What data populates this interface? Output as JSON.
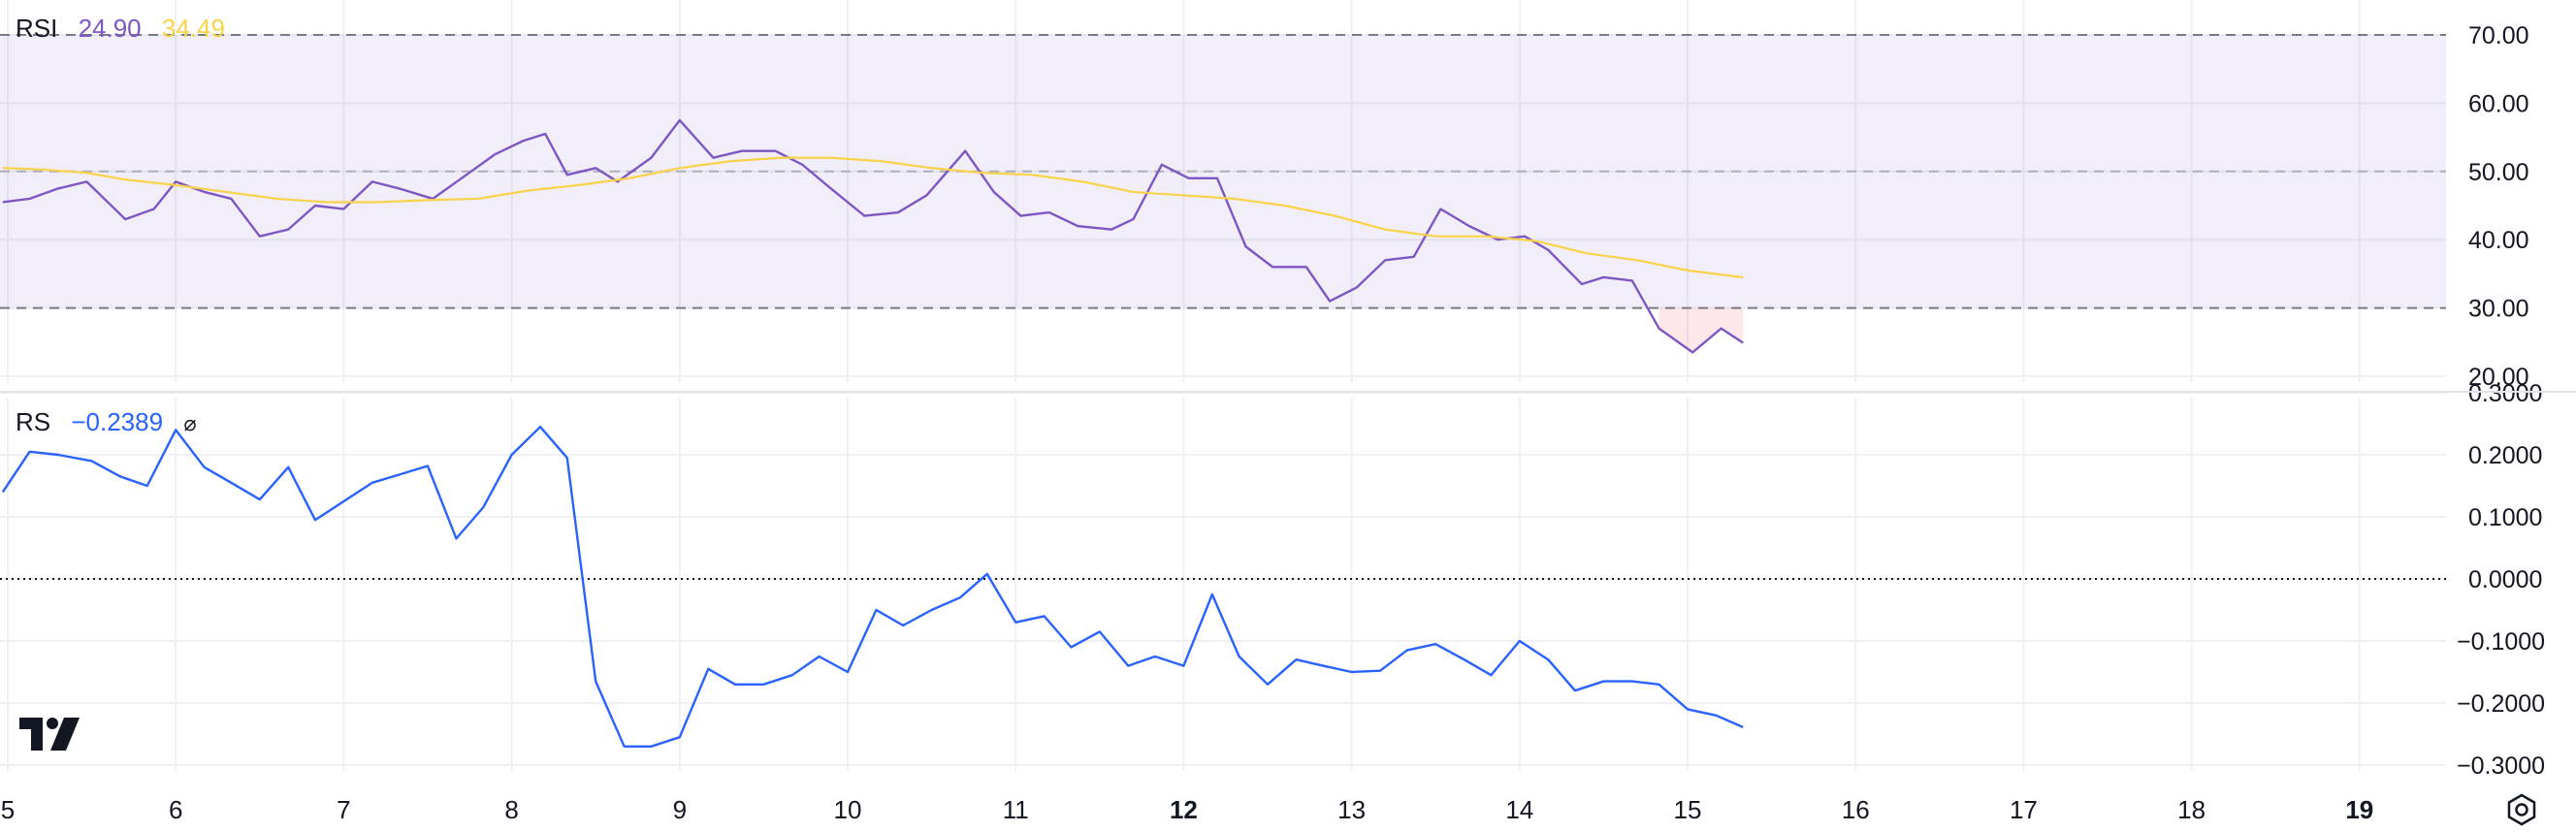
{
  "indicators": {
    "rsi": {
      "name": "RSI",
      "value": "24.90",
      "ma_value": "34.49",
      "color": "#7e57c2",
      "ma_color": "#f7d34a"
    },
    "rs": {
      "name": "RS",
      "value": "−0.2389",
      "flag": "⌀",
      "color": "#2962ff"
    }
  },
  "logo_icon": "tradingview-logo-icon",
  "settings_icon": "gear-icon",
  "chart_data": [
    {
      "type": "line",
      "title": "RSI",
      "y_ticks": [
        "70.00",
        "60.00",
        "50.00",
        "40.00",
        "30.00",
        "20.00"
      ],
      "ylim": [
        20,
        70
      ],
      "bands": {
        "upper": 70,
        "middle": 50,
        "lower": 30,
        "fill_color": "#7e57c2"
      },
      "x_labels": [
        {
          "x": 5,
          "label": "5"
        },
        {
          "x": 6,
          "label": "6"
        },
        {
          "x": 7,
          "label": "7"
        },
        {
          "x": 8,
          "label": "8"
        },
        {
          "x": 9,
          "label": "9"
        },
        {
          "x": 10,
          "label": "10"
        },
        {
          "x": 11,
          "label": "11"
        },
        {
          "x": 12,
          "label": "12",
          "bold": true
        },
        {
          "x": 13,
          "label": "13"
        },
        {
          "x": 14,
          "label": "14"
        },
        {
          "x": 15,
          "label": "15"
        },
        {
          "x": 16,
          "label": "16"
        },
        {
          "x": 17,
          "label": "17"
        },
        {
          "x": 18,
          "label": "18"
        },
        {
          "x": 19,
          "label": "19",
          "bold": true
        }
      ],
      "series": [
        {
          "color": "#7e57c2",
          "x": [
            4.97,
            5.13,
            5.3,
            5.47,
            5.7,
            5.87,
            6.0,
            6.17,
            6.33,
            6.5,
            6.67,
            6.83,
            7.0,
            7.17,
            7.33,
            7.53,
            7.73,
            7.9,
            8.07,
            8.2,
            8.33,
            8.5,
            8.63,
            8.83,
            9.0,
            9.2,
            9.37,
            9.57,
            9.73,
            9.9,
            10.1,
            10.3,
            10.47,
            10.7,
            10.87,
            11.03,
            11.2,
            11.37,
            11.57,
            11.7,
            11.87,
            12.03,
            12.2,
            12.37,
            12.53,
            12.73,
            12.87,
            13.03,
            13.2,
            13.37,
            13.53,
            13.7,
            13.87,
            14.03,
            14.17,
            14.37,
            14.5,
            14.67,
            14.83,
            15.03,
            15.2,
            15.33
          ],
          "y": [
            45.5,
            46,
            47.5,
            48.5,
            43,
            44.5,
            48.5,
            47,
            46,
            40.5,
            41.5,
            45,
            44.5,
            48.5,
            47.5,
            46,
            49.5,
            52.5,
            54.5,
            55.5,
            49.5,
            50.5,
            48.5,
            52,
            57.5,
            52,
            53,
            53,
            51,
            47.5,
            43.5,
            44,
            46.5,
            53,
            47,
            43.5,
            44,
            42,
            41.5,
            43,
            51,
            49,
            49,
            39,
            36,
            36,
            31,
            33,
            37,
            37.5,
            44.5,
            42,
            40,
            40.5,
            38.5,
            33.5,
            34.5,
            34,
            27,
            23.5,
            27,
            24.9
          ]
        },
        {
          "color": "#f7d34a",
          "x": [
            4.97,
            5.2,
            5.47,
            5.7,
            6.0,
            6.3,
            6.6,
            6.9,
            7.2,
            7.5,
            7.8,
            8.1,
            8.4,
            8.7,
            9.0,
            9.3,
            9.6,
            9.9,
            10.2,
            10.5,
            10.8,
            11.1,
            11.4,
            11.7,
            12.0,
            12.3,
            12.6,
            12.9,
            13.2,
            13.5,
            13.8,
            14.1,
            14.4,
            14.7,
            15.0,
            15.33
          ],
          "y": [
            50.5,
            50.3,
            49.8,
            48.8,
            48,
            47,
            46,
            45.5,
            45.5,
            45.8,
            46,
            47.2,
            48,
            49,
            50.5,
            51.5,
            52,
            52,
            51.5,
            50.5,
            49.8,
            49.5,
            48.5,
            47,
            46.5,
            46,
            45,
            43.5,
            41.5,
            40.5,
            40.5,
            39.8,
            38,
            37,
            35.5,
            34.49
          ]
        }
      ]
    },
    {
      "type": "line",
      "title": "RS",
      "y_ticks": [
        "0.3000",
        "0.2000",
        "0.1000",
        "0.0000",
        "−0.1000",
        "−0.2000",
        "−0.3000"
      ],
      "ylim": [
        -0.3,
        0.3
      ],
      "zero_line": 0,
      "series": [
        {
          "color": "#2962ff",
          "x": [
            4.97,
            5.13,
            5.3,
            5.5,
            5.67,
            5.83,
            6.0,
            6.17,
            6.33,
            6.5,
            6.67,
            6.83,
            7.0,
            7.17,
            7.33,
            7.5,
            7.67,
            7.83,
            8.0,
            8.17,
            8.33,
            8.5,
            8.67,
            8.83,
            9.0,
            9.17,
            9.33,
            9.5,
            9.67,
            9.83,
            10.0,
            10.17,
            10.33,
            10.5,
            10.67,
            10.83,
            11.0,
            11.17,
            11.33,
            11.5,
            11.67,
            11.83,
            12.0,
            12.17,
            12.33,
            12.5,
            12.67,
            12.83,
            13.0,
            13.17,
            13.33,
            13.5,
            13.67,
            13.83,
            14.0,
            14.17,
            14.33,
            14.5,
            14.67,
            14.83,
            15.0,
            15.17,
            15.33
          ],
          "y": [
            0.14,
            0.205,
            0.2,
            0.19,
            0.165,
            0.15,
            0.24,
            0.18,
            0.155,
            0.128,
            0.18,
            0.095,
            0.125,
            0.155,
            0.168,
            0.182,
            0.065,
            0.115,
            0.2,
            0.245,
            0.195,
            -0.165,
            -0.27,
            -0.27,
            -0.255,
            -0.145,
            -0.17,
            -0.17,
            -0.155,
            -0.125,
            -0.15,
            -0.05,
            -0.075,
            -0.05,
            -0.03,
            0.008,
            -0.07,
            -0.06,
            -0.11,
            -0.085,
            -0.14,
            -0.125,
            -0.14,
            -0.025,
            -0.125,
            -0.17,
            -0.13,
            -0.14,
            -0.15,
            -0.148,
            -0.115,
            -0.105,
            -0.13,
            -0.155,
            -0.1,
            -0.13,
            -0.18,
            -0.165,
            -0.165,
            -0.17,
            -0.21,
            -0.22,
            -0.2389
          ]
        }
      ]
    }
  ]
}
